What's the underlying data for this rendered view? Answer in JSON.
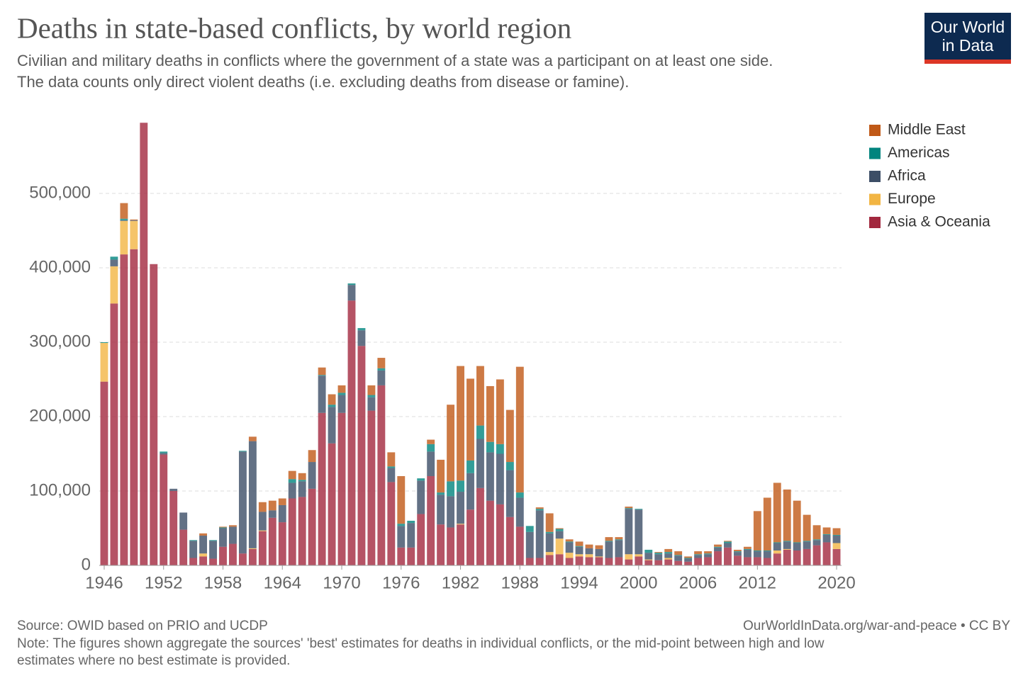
{
  "chart_data": {
    "type": "stacked-bar",
    "title": "Deaths in state-based conflicts, by world region",
    "subtitle": [
      "Civilian and military deaths in conflicts where the government of a state was a participant on at least one side.",
      "The data counts only direct violent deaths (i.e. excluding deaths from disease or famine)."
    ],
    "logo": [
      "Our World",
      "in Data"
    ],
    "source": "Source: OWID based on PRIO and UCDP",
    "url": "OurWorldInData.org/war-and-peace • CC BY",
    "note": [
      "Note: The figures shown aggregate the sources' 'best' estimates for deaths in individual conflicts, or the mid-point between high and low",
      "estimates where no best estimate is provided."
    ],
    "x": [
      1946,
      1947,
      1948,
      1949,
      1950,
      1951,
      1952,
      1953,
      1954,
      1955,
      1956,
      1957,
      1958,
      1959,
      1960,
      1961,
      1962,
      1963,
      1964,
      1965,
      1966,
      1967,
      1968,
      1969,
      1970,
      1971,
      1972,
      1973,
      1974,
      1975,
      1976,
      1977,
      1978,
      1979,
      1980,
      1981,
      1982,
      1983,
      1984,
      1985,
      1986,
      1987,
      1988,
      1989,
      1990,
      1991,
      1992,
      1993,
      1994,
      1995,
      1996,
      1997,
      1998,
      1999,
      2000,
      2001,
      2002,
      2003,
      2004,
      2005,
      2006,
      2007,
      2008,
      2009,
      2010,
      2011,
      2012,
      2013,
      2014,
      2015,
      2016,
      2017,
      2018,
      2019,
      2020
    ],
    "xticks": [
      1946,
      1952,
      1958,
      1964,
      1970,
      1976,
      1982,
      1988,
      1994,
      2000,
      2006,
      2012,
      2020
    ],
    "xlim": [
      1945.5,
      2020.5
    ],
    "ylim": [
      0,
      600000
    ],
    "yticks": [
      0,
      {
        "value": 100000,
        "label": "100,000"
      },
      {
        "value": 200000,
        "label": "200,000"
      },
      {
        "value": 300000,
        "label": "300,000"
      },
      {
        "value": 400000,
        "label": "400,000"
      },
      {
        "value": 500000,
        "label": "500,000"
      }
    ],
    "grid": true,
    "legend": "right",
    "series": [
      {
        "name": "Middle East",
        "color": "#c05917",
        "values": [
          0,
          0,
          21000,
          1000,
          0,
          0,
          0,
          0,
          0,
          0,
          3000,
          0,
          1000,
          2000,
          0,
          6000,
          13000,
          13000,
          9000,
          11000,
          9000,
          16000,
          10000,
          14000,
          10000,
          0,
          0,
          13000,
          14000,
          19000,
          64000,
          0,
          0,
          6000,
          44000,
          103000,
          154000,
          110000,
          80000,
          75000,
          87000,
          70000,
          169000,
          0,
          2000,
          25000,
          1000,
          3000,
          6000,
          5000,
          5000,
          5000,
          3000,
          2000,
          0,
          0,
          1000,
          4000,
          5000,
          2000,
          4000,
          3000,
          3000,
          1000,
          2000,
          3000,
          53000,
          71000,
          80000,
          69000,
          56000,
          35000,
          19000,
          9000,
          9000
        ]
      },
      {
        "name": "Americas",
        "color": "#00847e",
        "values": [
          1000,
          4000,
          2000,
          0,
          0,
          0,
          2000,
          0,
          0,
          1000,
          0,
          1000,
          1000,
          0,
          1000,
          0,
          0,
          0,
          0,
          5000,
          2000,
          0,
          1000,
          3000,
          3000,
          2000,
          3000,
          3000,
          3000,
          2000,
          3000,
          3000,
          3000,
          10000,
          3000,
          20000,
          15000,
          17000,
          18000,
          14000,
          13000,
          11000,
          7000,
          8000,
          2000,
          2000,
          3000,
          1000,
          1000,
          0,
          0,
          1000,
          1000,
          1000,
          1000,
          4000,
          2000,
          2000,
          1000,
          1000,
          1000,
          1000,
          1000,
          2000,
          1000,
          1000,
          1000,
          1000,
          1000,
          1000,
          1000,
          1000,
          1000,
          1000,
          1000
        ]
      },
      {
        "name": "Africa",
        "color": "#3c4e66",
        "values": [
          0,
          9000,
          1000,
          1000,
          0,
          0,
          2000,
          3000,
          23000,
          23000,
          24000,
          24000,
          25000,
          23000,
          137000,
          144000,
          25000,
          10000,
          23000,
          21000,
          21000,
          36000,
          50000,
          49000,
          24000,
          21000,
          21000,
          18000,
          20000,
          19000,
          29000,
          33000,
          45000,
          33000,
          40000,
          42000,
          43000,
          49000,
          66000,
          65000,
          68000,
          63000,
          39000,
          35000,
          64000,
          25000,
          10000,
          14000,
          10000,
          8000,
          10000,
          22000,
          23000,
          61000,
          60000,
          9000,
          8000,
          6000,
          7000,
          4000,
          4000,
          4000,
          5000,
          6000,
          5000,
          10000,
          8000,
          9000,
          10000,
          10000,
          10000,
          10000,
          7000,
          10000,
          10000
        ]
      },
      {
        "name": "Europe",
        "color": "#f2b543",
        "values": [
          52000,
          50000,
          45000,
          38000,
          0,
          0,
          0,
          0,
          0,
          0,
          4000,
          0,
          0,
          0,
          0,
          1000,
          1000,
          0,
          0,
          0,
          0,
          0,
          0,
          0,
          0,
          0,
          0,
          0,
          0,
          0,
          0,
          0,
          0,
          0,
          0,
          0,
          1000,
          0,
          0,
          0,
          0,
          0,
          0,
          0,
          0,
          4000,
          21000,
          7000,
          3000,
          4000,
          1000,
          0,
          0,
          7000,
          3000,
          1000,
          0,
          2000,
          0,
          0,
          0,
          0,
          0,
          0,
          0,
          0,
          0,
          0,
          4000,
          1000,
          0,
          0,
          0,
          0,
          8000
        ]
      },
      {
        "name": "Asia & Oceania",
        "color": "#a2283e",
        "values": [
          247000,
          352000,
          418000,
          425000,
          595000,
          405000,
          149000,
          100000,
          48000,
          10000,
          12000,
          9000,
          25000,
          29000,
          16000,
          22000,
          46000,
          64000,
          58000,
          90000,
          92000,
          103000,
          205000,
          164000,
          205000,
          356000,
          295000,
          208000,
          242000,
          112000,
          24000,
          24000,
          69000,
          120000,
          55000,
          51000,
          55000,
          75000,
          104000,
          87000,
          82000,
          65000,
          52000,
          10000,
          10000,
          14000,
          15000,
          10000,
          12000,
          11000,
          11000,
          10000,
          11000,
          8000,
          12000,
          7000,
          7000,
          8000,
          6000,
          5000,
          10000,
          11000,
          19000,
          24000,
          13000,
          11000,
          11000,
          10000,
          16000,
          21000,
          20000,
          22000,
          27000,
          31000,
          22000
        ]
      }
    ]
  }
}
